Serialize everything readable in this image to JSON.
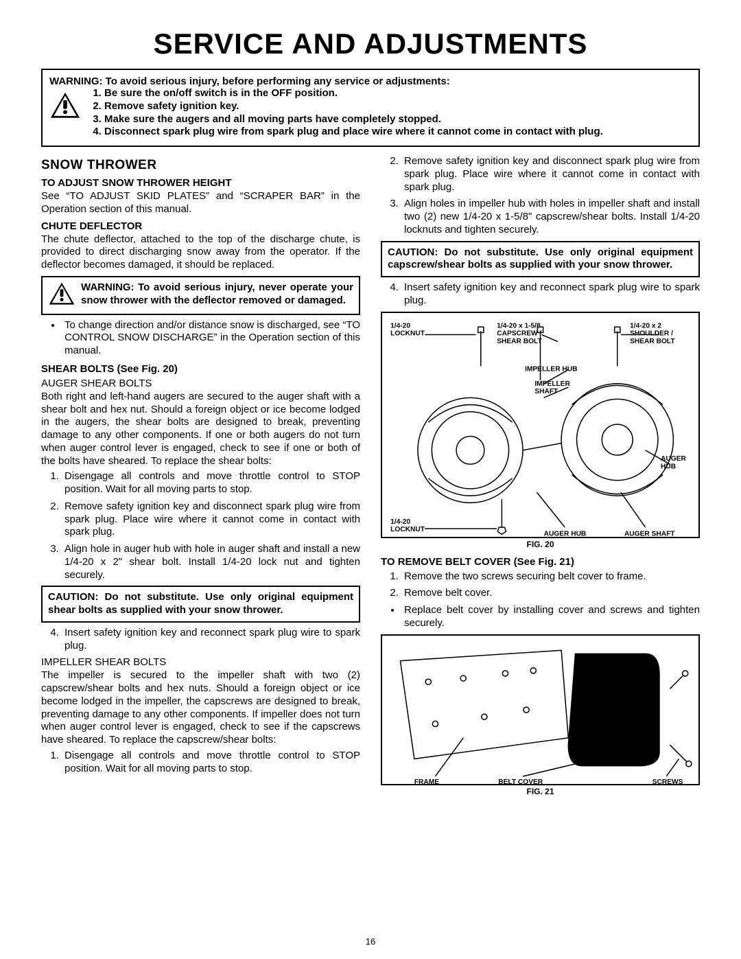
{
  "page": {
    "title": "Service And Adjustments",
    "number": "16"
  },
  "top_warning": {
    "lead": "WARNING: To avoid serious injury, before performing any service or adjustments:",
    "items": [
      "Be sure the on/off switch is in the OFF position.",
      "Remove safety ignition key.",
      "Make sure the augers and all moving parts have completely stopped.",
      "Disconnect spark plug wire from spark plug and place wire where it cannot come in contact with plug."
    ]
  },
  "left": {
    "section": "Snow Thrower",
    "adjust_head": "To Adjust Snow Thrower Height",
    "adjust_body": "See “TO ADJUST SKID PLATES” and “SCRAPER BAR” in the Operation section of this manual.",
    "chute_head": "Chute Deflector",
    "chute_body": "The chute deflector, attached to the top of the discharge chute, is provided to direct discharging snow away from the operator. If the deflector becomes damaged, it should be replaced.",
    "chute_warn": "WARNING: To avoid serious injury, never operate your snow thrower with the deflector removed or damaged.",
    "chute_bullet": "To change direction and/or distance snow is discharged, see “TO CONTROL SNOW DISCHARGE” in the Operation section of this manual.",
    "shear_head": "SHEAR BOLTS (See Fig. 20)",
    "auger_sub": "AUGER SHEAR BOLTS",
    "auger_body": "Both right and left-hand augers are secured to the auger shaft with a shear bolt and hex nut. Should a foreign object or ice become lodged in the augers, the shear bolts are designed to break, preventing damage to any other components. If one or both augers do not turn when auger control lever is engaged, check to see if one or both of the bolts have sheared. To replace the shear bolts:",
    "auger_steps": [
      "Disengage all controls and move throttle control to STOP position. Wait for all moving parts to stop.",
      "Remove safety ignition key and disconnect spark plug wire from spark plug.  Place wire where it cannot come in contact with spark plug.",
      "Align hole in auger hub with hole in auger shaft and install a new 1/4-20 x 2\" shear bolt.  Install 1/4-20 lock nut and tighten securely."
    ],
    "auger_caution": "CAUTION: Do not substitute. Use only original equipment shear bolts as supplied with your snow thrower.",
    "auger_step4": "Insert safety ignition key and reconnect spark plug wire to spark plug.",
    "impeller_sub": "IMPELLER SHEAR BOLTS",
    "impeller_body": "The impeller is secured to the impeller shaft with two (2) capscrew/shear bolts and hex nuts. Should a foreign object or ice become lodged in the impeller, the capscrews are designed to break, preventing damage to any other components. If impeller does not turn when auger control lever is engaged, check to see if the capscrews have sheared. To replace the capscrew/shear bolts:",
    "impeller_steps": [
      "Disengage all controls and move throttle control to STOP position. Wait for all moving parts to stop."
    ]
  },
  "right": {
    "cont_steps": [
      "Remove safety ignition key and disconnect spark plug wire from spark plug.  Place wire where it cannot come in contact with spark plug.",
      "Align holes in impeller hub with holes in impeller shaft and install two (2) new 1/4-20 x 1-5/8\" capscrew/shear bolts. Install 1/4-20 locknuts and tighten securely."
    ],
    "imp_caution": "CAUTION: Do not substitute. Use only original equipment capscrew/shear bolts as supplied with your snow thrower.",
    "cont_step4": "Insert safety ignition key and reconnect spark plug wire to spark plug.",
    "fig20": {
      "caption": "FIG. 20",
      "labels": {
        "locknut_top": "1/4-20\nLOCKNUT",
        "capscrew": "1/4-20 x 1-5/8\nCAPSCREW /\nSHEAR BOLT",
        "shoulder": "1/4-20 x 2\nSHOULDER /\nSHEAR BOLT",
        "imp_hub": "IMPELLER HUB",
        "imp_shaft": "IMPELLER\nSHAFT",
        "auger_hub_r": "AUGER\nHUB",
        "locknut_bot": "1/4-20\nLOCKNUT",
        "auger_hub_b": "AUGER HUB",
        "auger_shaft": "AUGER SHAFT"
      }
    },
    "belt_head": "TO REMOVE BELT COVER (See Fig. 21)",
    "belt_steps": [
      "Remove the two screws securing belt cover to frame.",
      "Remove belt cover."
    ],
    "belt_bullet": "Replace belt cover by installing cover and screws and tighten securely.",
    "fig21": {
      "caption": "FIG. 21",
      "labels": {
        "frame": "FRAME",
        "belt_cover": "BELT COVER",
        "screws": "SCREWS"
      }
    }
  }
}
